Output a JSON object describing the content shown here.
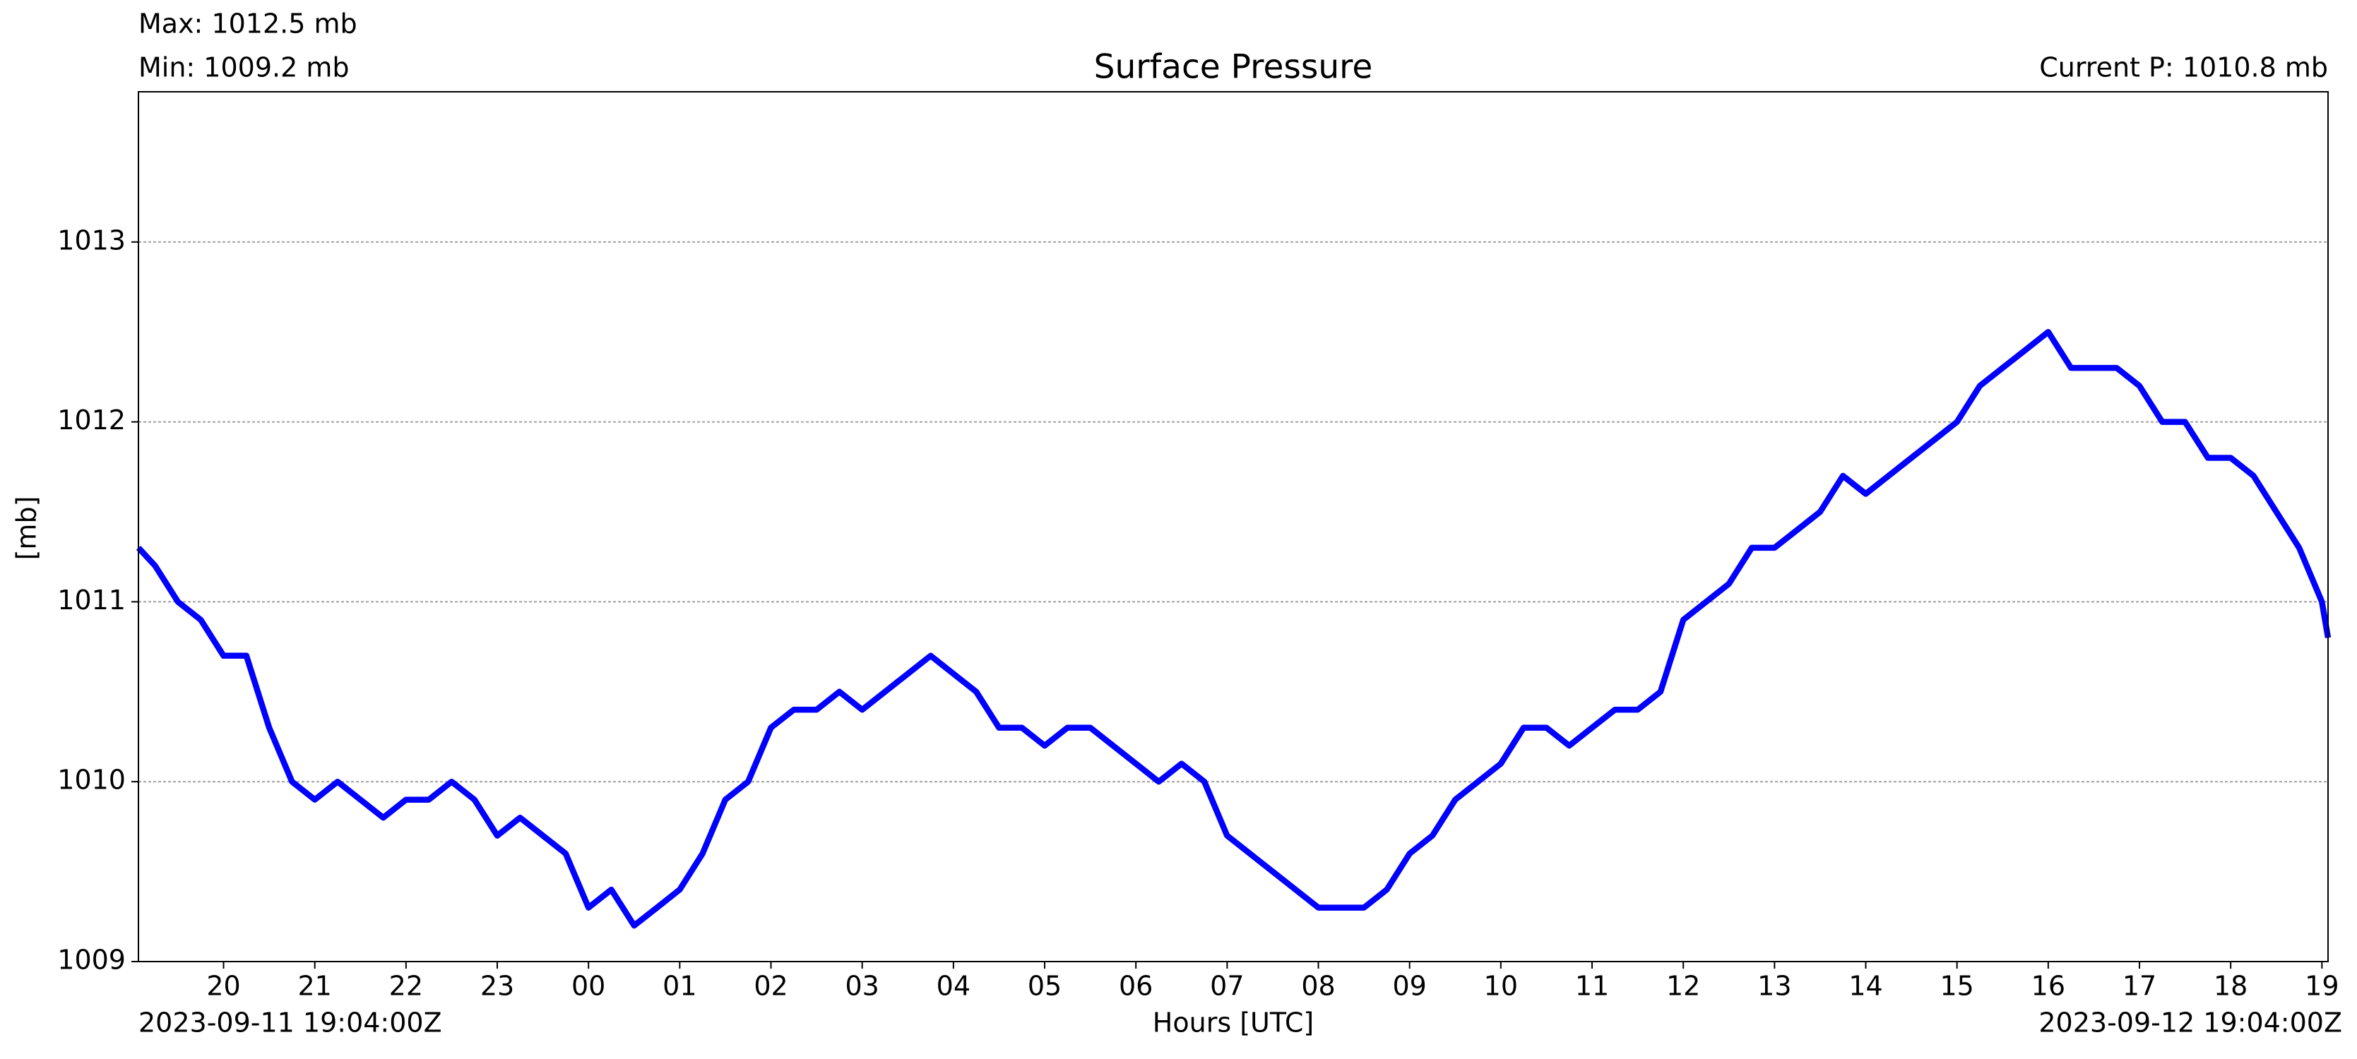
{
  "chart_data": {
    "type": "line",
    "title": "Surface Pressure",
    "annotations": {
      "max": "Max: 1012.5 mb",
      "min": "Min: 1009.2 mb",
      "current": "Current P: 1010.8 mb",
      "start": "2023-09-11 19:04:00Z",
      "end": "2023-09-12 19:04:00Z"
    },
    "xlabel": "Hours [UTC]",
    "ylabel": "[mb]",
    "x": [
      19.067,
      19.25,
      19.5,
      19.75,
      20.0,
      20.25,
      20.5,
      20.75,
      21.0,
      21.25,
      21.5,
      21.75,
      22.0,
      22.25,
      22.5,
      22.75,
      23.0,
      23.25,
      23.5,
      23.75,
      24.0,
      24.25,
      24.5,
      24.75,
      25.0,
      25.25,
      25.5,
      25.75,
      26.0,
      26.25,
      26.5,
      26.75,
      27.0,
      27.25,
      27.5,
      27.75,
      28.0,
      28.25,
      28.5,
      28.75,
      29.0,
      29.25,
      29.5,
      29.75,
      30.0,
      30.25,
      30.5,
      30.75,
      31.0,
      31.25,
      31.5,
      31.75,
      32.0,
      32.25,
      32.5,
      32.75,
      33.0,
      33.25,
      33.5,
      33.75,
      34.0,
      34.25,
      34.5,
      34.75,
      35.0,
      35.25,
      35.5,
      35.75,
      36.0,
      36.25,
      36.5,
      36.75,
      37.0,
      37.25,
      37.5,
      37.75,
      38.0,
      38.25,
      38.5,
      38.75,
      39.0,
      39.25,
      39.5,
      39.75,
      40.0,
      40.25,
      40.5,
      40.75,
      41.0,
      41.25,
      41.5,
      41.75,
      42.0,
      42.25,
      42.5,
      42.75,
      43.0,
      43.067
    ],
    "series": [
      {
        "name": "Surface Pressure",
        "color": "#0000ff",
        "values": [
          1011.3,
          1011.2,
          1011.0,
          1010.9,
          1010.7,
          1010.7,
          1010.3,
          1010.0,
          1009.9,
          1010.0,
          1009.9,
          1009.8,
          1009.9,
          1009.9,
          1010.0,
          1009.9,
          1009.7,
          1009.8,
          1009.7,
          1009.6,
          1009.3,
          1009.4,
          1009.2,
          1009.3,
          1009.4,
          1009.6,
          1009.9,
          1010.0,
          1010.3,
          1010.4,
          1010.4,
          1010.5,
          1010.4,
          1010.5,
          1010.6,
          1010.7,
          1010.6,
          1010.5,
          1010.3,
          1010.3,
          1010.2,
          1010.3,
          1010.3,
          1010.2,
          1010.1,
          1010.0,
          1010.1,
          1010.0,
          1009.7,
          1009.6,
          1009.5,
          1009.4,
          1009.3,
          1009.3,
          1009.3,
          1009.4,
          1009.6,
          1009.7,
          1009.9,
          1010.0,
          1010.1,
          1010.3,
          1010.3,
          1010.2,
          1010.3,
          1010.4,
          1010.4,
          1010.5,
          1010.9,
          1011.0,
          1011.1,
          1011.3,
          1011.3,
          1011.4,
          1011.5,
          1011.7,
          1011.6,
          1011.7,
          1011.8,
          1011.9,
          1012.0,
          1012.2,
          1012.3,
          1012.4,
          1012.5,
          1012.3,
          1012.3,
          1012.3,
          1012.2,
          1012.0,
          1012.0,
          1011.8,
          1011.8,
          1011.7,
          1011.5,
          1011.3,
          1011.0,
          1010.8
        ]
      }
    ],
    "xlim": [
      19.067,
      43.067
    ],
    "xticks": [
      20,
      21,
      22,
      23,
      {
        "value": 24,
        "label": "00"
      },
      {
        "value": 25,
        "label": "01"
      },
      {
        "value": 26,
        "label": "02"
      },
      {
        "value": 27,
        "label": "03"
      },
      {
        "value": 28,
        "label": "04"
      },
      {
        "value": 29,
        "label": "05"
      },
      {
        "value": 30,
        "label": "06"
      },
      {
        "value": 31,
        "label": "07"
      },
      {
        "value": 32,
        "label": "08"
      },
      {
        "value": 33,
        "label": "09"
      },
      {
        "value": 34,
        "label": "10"
      },
      {
        "value": 35,
        "label": "11"
      },
      {
        "value": 36,
        "label": "12"
      },
      {
        "value": 37,
        "label": "13"
      },
      {
        "value": 38,
        "label": "14"
      },
      {
        "value": 39,
        "label": "15"
      },
      {
        "value": 40,
        "label": "16"
      },
      {
        "value": 41,
        "label": "17"
      },
      {
        "value": 42,
        "label": "18"
      },
      {
        "value": 43,
        "label": "19"
      }
    ],
    "ylim": [
      1009,
      1013.835
    ],
    "yticks": [
      1009,
      1010,
      1011,
      1012,
      1013
    ],
    "grid": true
  }
}
